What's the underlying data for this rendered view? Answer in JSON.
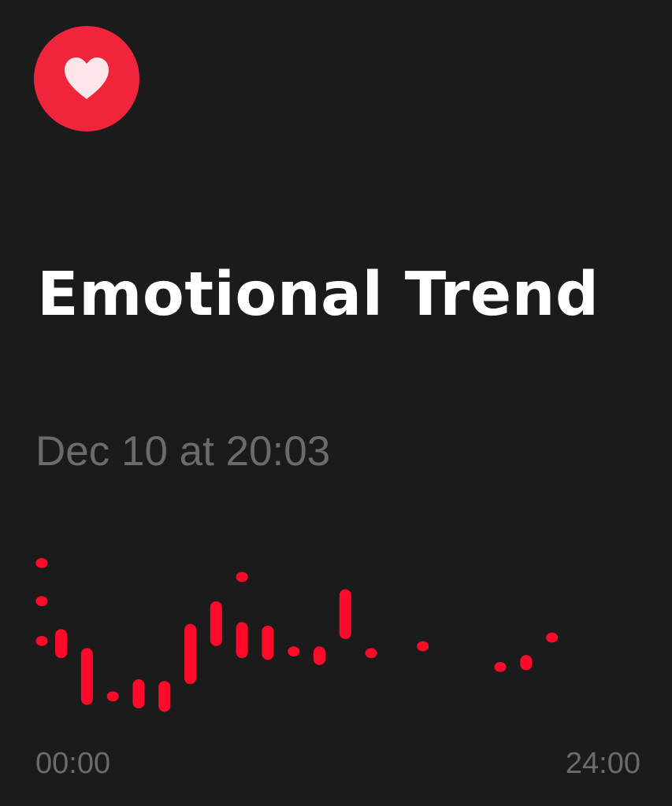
{
  "app": {
    "icon": "heart-icon",
    "accent_color": "#f0243a",
    "icon_glyph_color": "#fde6ea"
  },
  "header": {
    "title": "Emotional Trend",
    "timestamp": "Dec 10 at 20:03"
  },
  "chart_data": {
    "type": "range-bar",
    "color": "#ff0a2a",
    "xlabel": "",
    "ylabel": "",
    "x_ticks": [
      "00:00",
      "24:00"
    ],
    "x_range_hours": [
      0,
      24
    ],
    "y_range": [
      0,
      100
    ],
    "grid": false,
    "points": [
      {
        "hour": 0.0,
        "low": 93,
        "high": 93
      },
      {
        "hour": 0.0,
        "low": 71,
        "high": 71
      },
      {
        "hour": 0.0,
        "low": 48,
        "high": 48
      },
      {
        "hour": 0.75,
        "low": 41,
        "high": 52
      },
      {
        "hour": 1.75,
        "low": 14,
        "high": 41
      },
      {
        "hour": 2.75,
        "low": 16,
        "high": 16
      },
      {
        "hour": 3.75,
        "low": 12,
        "high": 23
      },
      {
        "hour": 4.75,
        "low": 10,
        "high": 22
      },
      {
        "hour": 5.75,
        "low": 26,
        "high": 55
      },
      {
        "hour": 6.75,
        "low": 48,
        "high": 68
      },
      {
        "hour": 7.75,
        "low": 41,
        "high": 56
      },
      {
        "hour": 7.75,
        "low": 85,
        "high": 85
      },
      {
        "hour": 8.75,
        "low": 40,
        "high": 54
      },
      {
        "hour": 9.75,
        "low": 42,
        "high": 42
      },
      {
        "hour": 10.75,
        "low": 37,
        "high": 42
      },
      {
        "hour": 11.75,
        "low": 52,
        "high": 75
      },
      {
        "hour": 12.75,
        "low": 41,
        "high": 41
      },
      {
        "hour": 14.75,
        "low": 45,
        "high": 45
      },
      {
        "hour": 17.75,
        "low": 33,
        "high": 33
      },
      {
        "hour": 18.75,
        "low": 34,
        "high": 37
      },
      {
        "hour": 19.75,
        "low": 50,
        "high": 50
      }
    ]
  }
}
